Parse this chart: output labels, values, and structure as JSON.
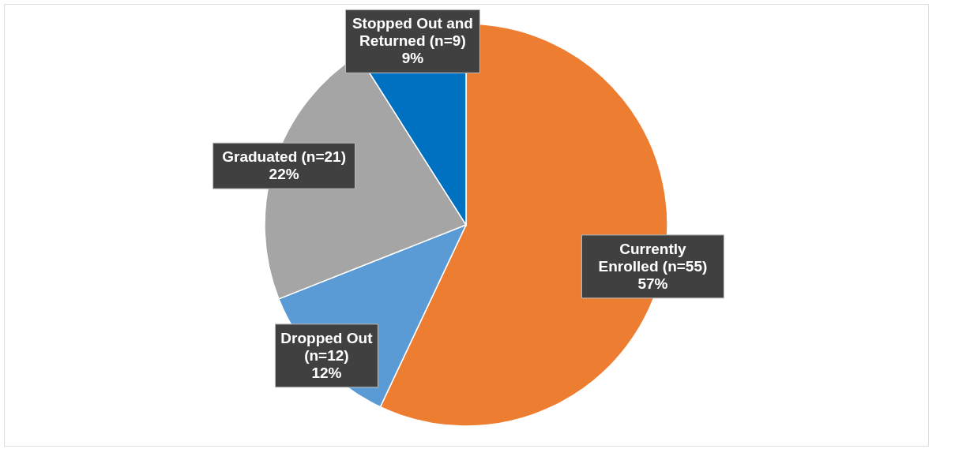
{
  "chart_data": {
    "type": "pie",
    "categories": [
      "Currently\nEnrolled  (n=55)",
      "Dropped Out\n(n=12)",
      "Graduated (n=21)",
      "Stopped Out and\nReturned (n=9)"
    ],
    "values": [
      57,
      12,
      22,
      9
    ],
    "colors": [
      "#ed7d31",
      "#5b9bd5",
      "#a5a5a5",
      "#0070c0"
    ],
    "value_labels": [
      "57%",
      "12%",
      "22%",
      "9%"
    ],
    "legend": false
  }
}
